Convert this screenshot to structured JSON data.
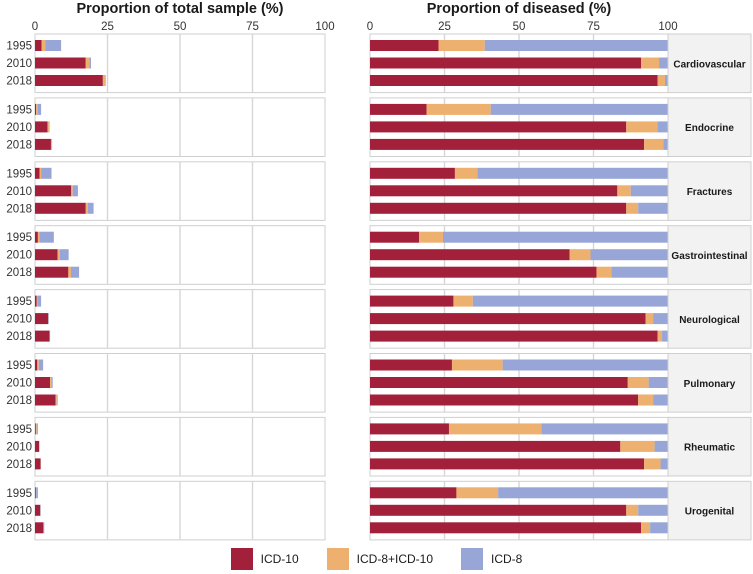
{
  "chart_data": {
    "type": "bar",
    "orientation": "horizontal",
    "stacked": true,
    "colors": {
      "ICD-10": "#A3203A",
      "ICD-8+ICD-10": "#EEB06F",
      "ICD-8": "#97A6D6"
    },
    "years": [
      "1995",
      "2010",
      "2018"
    ],
    "legend": [
      "ICD-10",
      "ICD-8+ICD-10",
      "ICD-8"
    ],
    "panels": [
      {
        "title": "Proportion of total sample (%)",
        "xlim": [
          0,
          100
        ],
        "xticks": [
          "0",
          "25",
          "50",
          "75",
          "100"
        ],
        "grid": true,
        "facets": [
          {
            "label": "Cardiovascular",
            "rows": [
              {
                "year": "1995",
                "values": [
                  2.3,
                  1.2,
                  5.5
                ]
              },
              {
                "year": "2010",
                "values": [
                  17.5,
                  1.3,
                  0.5
                ]
              },
              {
                "year": "2018",
                "values": [
                  23.4,
                  0.8,
                  0.2
                ]
              }
            ]
          },
          {
            "label": "Endocrine",
            "rows": [
              {
                "year": "1995",
                "values": [
                  0.4,
                  0.5,
                  1.2
                ]
              },
              {
                "year": "2010",
                "values": [
                  4.3,
                  0.5,
                  0.2
                ]
              },
              {
                "year": "2018",
                "values": [
                  5.5,
                  0.3,
                  0.1
                ]
              }
            ]
          },
          {
            "label": "Fractures",
            "rows": [
              {
                "year": "1995",
                "values": [
                  1.6,
                  0.5,
                  3.6
                ]
              },
              {
                "year": "2010",
                "values": [
                  12.5,
                  0.5,
                  1.8
                ]
              },
              {
                "year": "2018",
                "values": [
                  17.5,
                  0.7,
                  2.0
                ]
              }
            ]
          },
          {
            "label": "Gastrointestinal",
            "rows": [
              {
                "year": "1995",
                "values": [
                  1.0,
                  0.5,
                  5.0
                ]
              },
              {
                "year": "2010",
                "values": [
                  7.8,
                  0.8,
                  3.0
                ]
              },
              {
                "year": "2018",
                "values": [
                  11.5,
                  0.9,
                  2.8
                ]
              }
            ]
          },
          {
            "label": "Neurological",
            "rows": [
              {
                "year": "1995",
                "values": [
                  0.6,
                  0.2,
                  1.3
                ]
              },
              {
                "year": "2010",
                "values": [
                  4.5,
                  0.1,
                  0.2
                ]
              },
              {
                "year": "2018",
                "values": [
                  5.0,
                  0.1,
                  0.1
                ]
              }
            ]
          },
          {
            "label": "Pulmonary",
            "rows": [
              {
                "year": "1995",
                "values": [
                  0.8,
                  0.5,
                  1.5
                ]
              },
              {
                "year": "2010",
                "values": [
                  5.2,
                  0.5,
                  0.4
                ]
              },
              {
                "year": "2018",
                "values": [
                  7.1,
                  0.4,
                  0.3
                ]
              }
            ]
          },
          {
            "label": "Rheumatic",
            "rows": [
              {
                "year": "1995",
                "values": [
                  0.3,
                  0.3,
                  0.4
                ]
              },
              {
                "year": "2010",
                "values": [
                  1.4,
                  0.1,
                  0.1
                ]
              },
              {
                "year": "2018",
                "values": [
                  1.9,
                  0.1,
                  0.05
                ]
              }
            ]
          },
          {
            "label": "Urogenital",
            "rows": [
              {
                "year": "1995",
                "values": [
                  0.3,
                  0.1,
                  0.6
                ]
              },
              {
                "year": "2010",
                "values": [
                  1.8,
                  0.05,
                  0.15
                ]
              },
              {
                "year": "2018",
                "values": [
                  2.9,
                  0.1,
                  0.2
                ]
              }
            ]
          }
        ]
      },
      {
        "title": "Proportion of diseased (%)",
        "xlim": [
          0,
          100
        ],
        "xticks": [
          "0",
          "25",
          "50",
          "75",
          "100"
        ],
        "grid": true,
        "facets": [
          {
            "label": "Cardiovascular",
            "rows": [
              {
                "year": "1995",
                "values": [
                  23,
                  15.5,
                  61.5
                ]
              },
              {
                "year": "2010",
                "values": [
                  91,
                  6,
                  3
                ]
              },
              {
                "year": "2018",
                "values": [
                  96.5,
                  2.5,
                  1
                ]
              }
            ]
          },
          {
            "label": "Endocrine",
            "rows": [
              {
                "year": "1995",
                "values": [
                  19,
                  21.5,
                  59.5
                ]
              },
              {
                "year": "2010",
                "values": [
                  86,
                  10.5,
                  3.5
                ]
              },
              {
                "year": "2018",
                "values": [
                  92,
                  6.5,
                  1.5
                ]
              }
            ]
          },
          {
            "label": "Fractures",
            "rows": [
              {
                "year": "1995",
                "values": [
                  28.5,
                  7.5,
                  64
                ]
              },
              {
                "year": "2010",
                "values": [
                  83,
                  4.5,
                  12.5
                ]
              },
              {
                "year": "2018",
                "values": [
                  86,
                  4,
                  10
                ]
              }
            ]
          },
          {
            "label": "Gastrointestinal",
            "rows": [
              {
                "year": "1995",
                "values": [
                  16.5,
                  8,
                  75.5
                ]
              },
              {
                "year": "2010",
                "values": [
                  67,
                  7,
                  26
                ]
              },
              {
                "year": "2018",
                "values": [
                  76,
                  5,
                  19
                ]
              }
            ]
          },
          {
            "label": "Neurological",
            "rows": [
              {
                "year": "1995",
                "values": [
                  28,
                  6.5,
                  65.5
                ]
              },
              {
                "year": "2010",
                "values": [
                  92.5,
                  2.5,
                  5
                ]
              },
              {
                "year": "2018",
                "values": [
                  96.5,
                  1.5,
                  2
                ]
              }
            ]
          },
          {
            "label": "Pulmonary",
            "rows": [
              {
                "year": "1995",
                "values": [
                  27.5,
                  17,
                  55.5
                ]
              },
              {
                "year": "2010",
                "values": [
                  86.5,
                  7,
                  6.5
                ]
              },
              {
                "year": "2018",
                "values": [
                  90,
                  5,
                  5
                ]
              }
            ]
          },
          {
            "label": "Rheumatic",
            "rows": [
              {
                "year": "1995",
                "values": [
                  26.5,
                  31,
                  42.5
                ]
              },
              {
                "year": "2010",
                "values": [
                  84,
                  11.5,
                  4.5
                ]
              },
              {
                "year": "2018",
                "values": [
                  92,
                  5.5,
                  2.5
                ]
              }
            ]
          },
          {
            "label": "Urogenital",
            "rows": [
              {
                "year": "1995",
                "values": [
                  29,
                  14,
                  57
                ]
              },
              {
                "year": "2010",
                "values": [
                  86,
                  4,
                  10
                ]
              },
              {
                "year": "2018",
                "values": [
                  91,
                  3,
                  6
                ]
              }
            ]
          }
        ]
      }
    ]
  }
}
